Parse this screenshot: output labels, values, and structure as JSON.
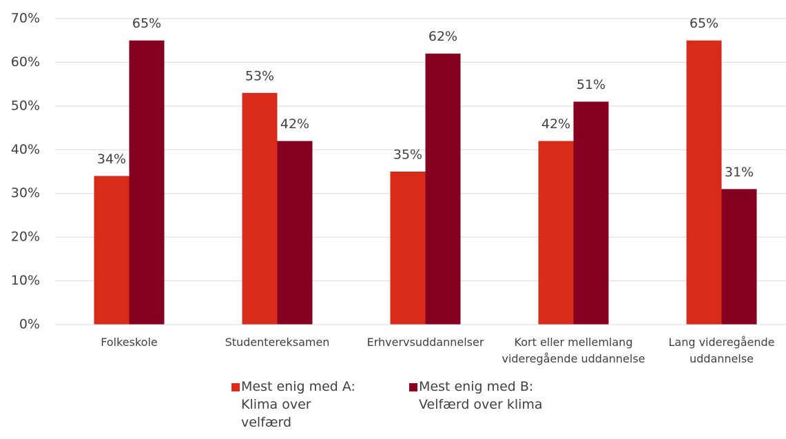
{
  "chart_data": {
    "type": "bar",
    "categories": [
      "Folkeskole",
      "Studentereksamen",
      "Erhvervsuddannelser",
      "Kort eller mellemlang videregående uddannelse",
      "Lang videregående uddannelse"
    ],
    "series": [
      {
        "name": "Mest enig med A: Klima over velfærd",
        "color": "#d92b1a",
        "values": [
          34,
          53,
          35,
          42,
          65
        ],
        "value_labels": [
          "34%",
          "53%",
          "35%",
          "42%",
          "65%"
        ]
      },
      {
        "name": "Mest enig med B: Velfærd over klima",
        "color": "#850020",
        "values": [
          65,
          42,
          62,
          51,
          31
        ],
        "value_labels": [
          "65%",
          "42%",
          "62%",
          "51%",
          "31%"
        ]
      }
    ],
    "ylim": [
      0,
      70
    ],
    "yticks": [
      {
        "value": 0,
        "label": "0%"
      },
      {
        "value": 10,
        "label": "10%"
      },
      {
        "value": 20,
        "label": "20%"
      },
      {
        "value": 30,
        "label": "30%"
      },
      {
        "value": 40,
        "label": "40%"
      },
      {
        "value": 50,
        "label": "50%"
      },
      {
        "value": 60,
        "label": "60%"
      },
      {
        "value": 70,
        "label": "70%"
      }
    ],
    "grid": true,
    "legend": "bottom"
  }
}
